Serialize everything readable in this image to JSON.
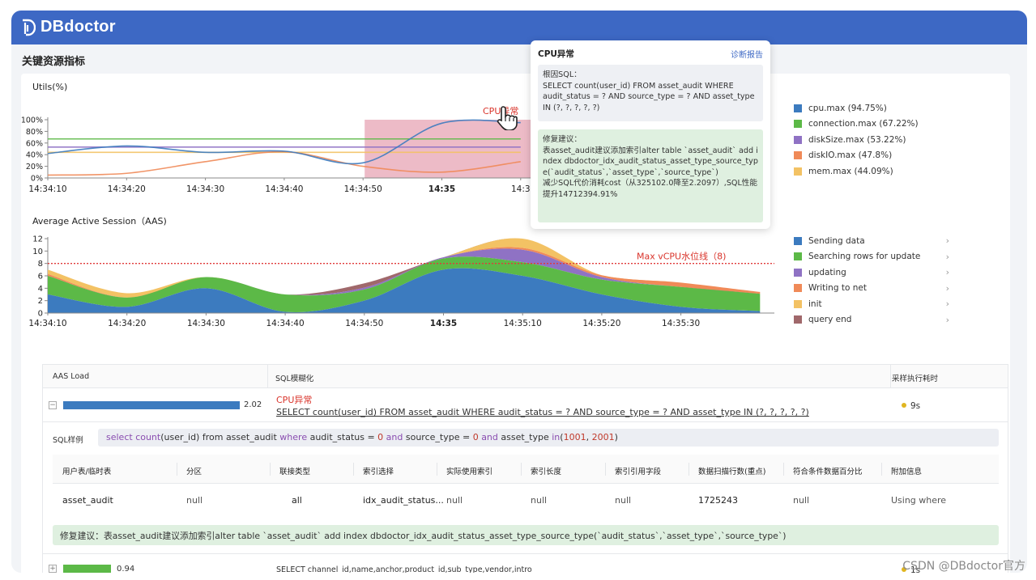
{
  "app": {
    "name": "DBdoctor"
  },
  "section_title": "关键资源指标",
  "utils_chart": {
    "title": "Utils(%)",
    "annotation": "CPU异常",
    "x_ticks": [
      "14:34:10",
      "14:34:20",
      "14:34:30",
      "14:34:40",
      "14:34:50",
      "14:35",
      "14:3"
    ],
    "y_ticks": [
      "100%",
      "80%",
      "60%",
      "40%",
      "20%",
      "0%"
    ],
    "legend": [
      {
        "label": "cpu.max (94.75%)",
        "color": "#3c7bbf"
      },
      {
        "label": "connection.max (67.22%)",
        "color": "#5cb947"
      },
      {
        "label": "diskSize.max (53.22%)",
        "color": "#8f72c4"
      },
      {
        "label": "diskIO.max (47.8%)",
        "color": "#f08a58"
      },
      {
        "label": "mem.max (44.09%)",
        "color": "#f3c264"
      }
    ]
  },
  "aas_chart": {
    "title": "Average Active Session（AAS)",
    "threshold_label": "Max vCPU水位线（8)",
    "x_ticks": [
      "14:34:10",
      "14:34:20",
      "14:34:30",
      "14:34:40",
      "14:34:50",
      "14:35",
      "14:35:10",
      "14:35:20",
      "14:35:30"
    ],
    "y_ticks": [
      "12",
      "10",
      "8",
      "6",
      "4",
      "2",
      "0"
    ],
    "legend": [
      {
        "label": "Sending data",
        "color": "#3c7bbf"
      },
      {
        "label": "Searching rows for update",
        "color": "#5cb947"
      },
      {
        "label": "updating",
        "color": "#8f72c4"
      },
      {
        "label": "Writing to net",
        "color": "#f08a58"
      },
      {
        "label": "init",
        "color": "#f3c264"
      },
      {
        "label": "query end",
        "color": "#a0686b"
      }
    ],
    "chevron": "›"
  },
  "chart_data": [
    {
      "type": "line",
      "title": "Utils(%)",
      "x": [
        "14:34:10",
        "14:34:20",
        "14:34:30",
        "14:34:40",
        "14:34:50",
        "14:35",
        "14:35:05"
      ],
      "ylim": [
        0,
        100
      ],
      "series": [
        {
          "name": "cpu.max (94.75%)",
          "values": [
            42,
            55,
            44,
            46,
            26,
            94,
            95
          ]
        },
        {
          "name": "connection.max (67.22%)",
          "values": [
            67,
            67,
            67,
            67,
            67,
            67,
            67
          ]
        },
        {
          "name": "diskSize.max (53.22%)",
          "values": [
            53,
            53,
            53,
            53,
            53,
            53,
            53
          ]
        },
        {
          "name": "diskIO.max (47.8%)",
          "values": [
            5,
            8,
            28,
            45,
            20,
            10,
            28
          ]
        },
        {
          "name": "mem.max (44.09%)",
          "values": [
            44,
            44,
            44,
            44,
            44,
            44,
            44
          ]
        }
      ]
    },
    {
      "type": "area",
      "title": "Average Active Session（AAS)",
      "x": [
        "14:34:10",
        "14:34:20",
        "14:34:30",
        "14:34:40",
        "14:34:50",
        "14:35",
        "14:35:10",
        "14:35:20",
        "14:35:30",
        "14:35:40"
      ],
      "ylim": [
        0,
        12
      ],
      "threshold": 8,
      "series": [
        {
          "name": "Sending data",
          "values": [
            3,
            1,
            4,
            0.2,
            2,
            7,
            6,
            3,
            1,
            0.3
          ]
        },
        {
          "name": "Searching rows for update",
          "values": [
            3,
            1.5,
            1.8,
            2.8,
            1.8,
            1.8,
            2.2,
            2.4,
            3.2,
            2.8
          ]
        },
        {
          "name": "updating",
          "values": [
            0,
            0,
            0,
            0,
            0.3,
            0.2,
            2,
            0.4,
            0,
            0
          ]
        },
        {
          "name": "Writing to net",
          "values": [
            0.3,
            0,
            0,
            0,
            0,
            0,
            0.3,
            0.3,
            0.7,
            0.3
          ]
        },
        {
          "name": "init",
          "values": [
            0.7,
            0.7,
            0,
            0,
            0,
            0,
            1.5,
            0,
            0,
            0
          ]
        },
        {
          "name": "query end",
          "values": [
            0,
            0,
            0,
            0,
            0.7,
            0,
            0,
            0,
            0,
            0
          ]
        }
      ]
    }
  ],
  "popup": {
    "title": "CPU异常",
    "link": "诊断报告",
    "root_label": "根因SQL：",
    "root_sql": "SELECT count(user_id) FROM asset_audit WHERE audit_status = ? AND source_type = ? AND asset_type IN (?, ?, ?, ?, ?)",
    "fix_label": "修复建议：",
    "fix_text": "表asset_audit建议添加索引alter table `asset_audit` add index dbdoctor_idx_audit_status_asset_type_source_type(`audit_status`,`asset_type`,`source_type`)",
    "cost_text": "减少SQL代价消耗cost（从325102.0降至2.2097）,SQL性能提升14712394.91%"
  },
  "table": {
    "headers": [
      "AAS Load",
      "SQL模糊化",
      "采样执行耗时"
    ],
    "rows": [
      {
        "toggle": "−",
        "load": "2.02",
        "load_ratio": 1.0,
        "tag": "CPU异常",
        "sql": "SELECT  count(user_id) FROM asset_audit WHERE audit_status = ? AND source_type = ? AND asset_type IN (?, ?, ?, ?, ?)",
        "time": "9s"
      },
      {
        "toggle": "+",
        "load": "0.94",
        "load_ratio": 0.27,
        "sql": "SELECT channel_id,name,anchor,product_id,sub_type,vendor,intro",
        "time": "1s"
      }
    ],
    "sample_label": "SQL样例",
    "sample_sql": {
      "p1": "select ",
      "fn1": "count",
      "p2": "(user_id) from asset_audit ",
      "kw1": "where",
      "p3": " audit_status = ",
      "n1": "0",
      "p4": " ",
      "kw2": "and",
      "p5": " source_type = ",
      "n2": "0",
      "p6": " ",
      "kw3": "and",
      "p7": " asset_type ",
      "kw4": "in",
      "p8": "(",
      "n3": "1001",
      "p9": ", ",
      "n4": "2001",
      "p10": ")"
    },
    "explain_headers": [
      "用户表/临时表",
      "分区",
      "联接类型",
      "索引选择",
      "实际使用索引",
      "索引长度",
      "索引引用字段",
      "数据扫描行数(重点)",
      "符合条件数据百分比",
      "附加信息"
    ],
    "explain_row": [
      "asset_audit",
      "null",
      "all",
      "idx_audit_status...",
      "null",
      "null",
      "null",
      "1725243",
      "null",
      "Using where"
    ],
    "suggestion": "修复建议：表asset_audit建议添加索引alter table `asset_audit` add index dbdoctor_idx_audit_status_asset_type_source_type(`audit_status`,`asset_type`,`source_type`)"
  },
  "watermark": "CSDN @DBdoctor官方"
}
